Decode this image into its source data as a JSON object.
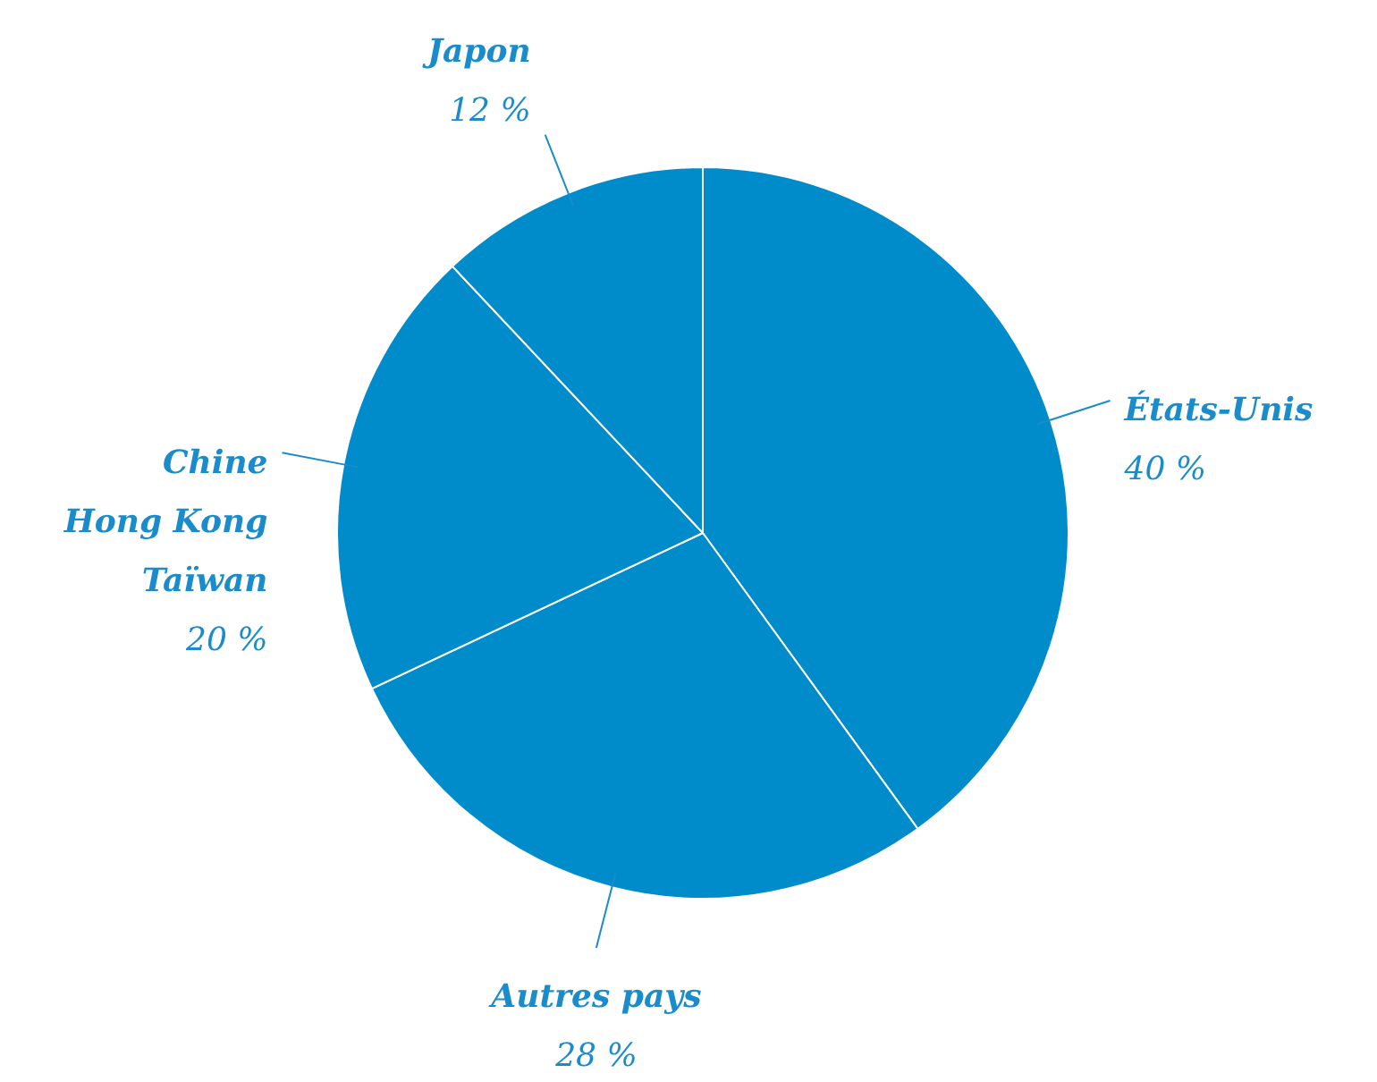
{
  "chart_data": {
    "type": "pie",
    "categories": [
      "États-Unis",
      "Autres pays",
      "Chine\nHong Kong\nTaïwan",
      "Japon"
    ],
    "values": [
      40,
      28,
      20,
      12
    ],
    "value_labels": [
      "40 %",
      "28 %",
      "20 %",
      "12 %"
    ],
    "colors": [
      "#008bca",
      "#008bca",
      "#008bca",
      "#008bca"
    ],
    "legend": false
  }
}
